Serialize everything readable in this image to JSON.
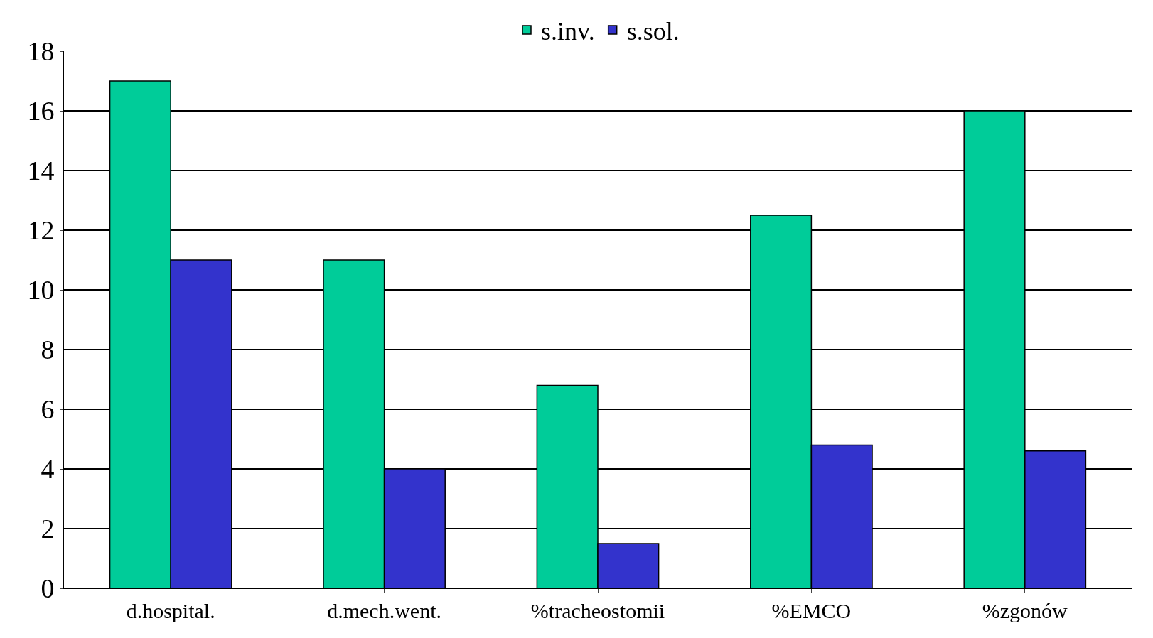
{
  "chart_data": {
    "type": "bar",
    "categories": [
      "d.hospital.",
      "d.mech.went.",
      "%tracheostomii",
      "%EMCO",
      "%zgonów"
    ],
    "series": [
      {
        "name": "s.inv.",
        "color": "#00cc99",
        "values": [
          17,
          11,
          6.8,
          12.5,
          16
        ]
      },
      {
        "name": "s.sol.",
        "color": "#3333cc",
        "values": [
          11,
          4,
          1.5,
          4.8,
          4.6
        ]
      }
    ],
    "ylim": [
      0,
      18
    ],
    "yticks": [
      0,
      2,
      4,
      6,
      8,
      10,
      12,
      14,
      16,
      18
    ],
    "grid": "y",
    "legend": "top"
  }
}
